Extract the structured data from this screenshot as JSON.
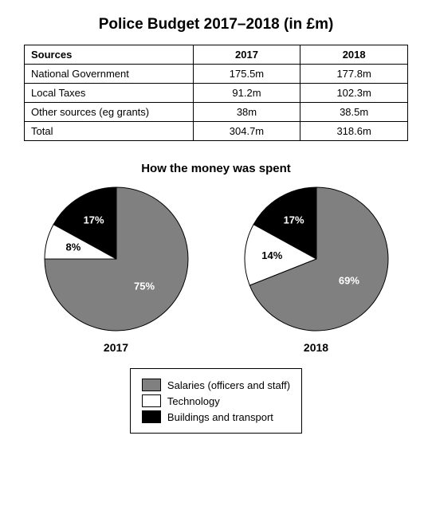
{
  "title": "Police Budget 2017–2018 (in £m)",
  "table": {
    "columns": [
      "Sources",
      "2017",
      "2018"
    ],
    "rows": [
      [
        "National Government",
        "175.5m",
        "177.8m"
      ],
      [
        "Local Taxes",
        "91.2m",
        "102.3m"
      ],
      [
        "Other sources (eg grants)",
        "38m",
        "38.5m"
      ],
      [
        "Total",
        "304.7m",
        "318.6m"
      ]
    ]
  },
  "spending_title": "How the money was spent",
  "pies": {
    "type": "pie",
    "radius": 90,
    "colors": {
      "salaries": "#808080",
      "technology": "#ffffff",
      "buildings": "#000000",
      "stroke": "#000000"
    },
    "label_fontsize": 13,
    "charts": [
      {
        "year": "2017",
        "slices": [
          {
            "key": "salaries",
            "pct": 75,
            "label": "75%",
            "label_color": "#ffffff"
          },
          {
            "key": "technology",
            "pct": 8,
            "label": "8%",
            "label_color": "#000000"
          },
          {
            "key": "buildings",
            "pct": 17,
            "label": "17%",
            "label_color": "#ffffff"
          }
        ]
      },
      {
        "year": "2018",
        "slices": [
          {
            "key": "salaries",
            "pct": 69,
            "label": "69%",
            "label_color": "#ffffff"
          },
          {
            "key": "technology",
            "pct": 14,
            "label": "14%",
            "label_color": "#000000"
          },
          {
            "key": "buildings",
            "pct": 17,
            "label": "17%",
            "label_color": "#ffffff"
          }
        ]
      }
    ]
  },
  "legend": [
    {
      "key": "salaries",
      "label": "Salaries (officers and staff)"
    },
    {
      "key": "technology",
      "label": "Technology"
    },
    {
      "key": "buildings",
      "label": "Buildings and transport"
    }
  ]
}
